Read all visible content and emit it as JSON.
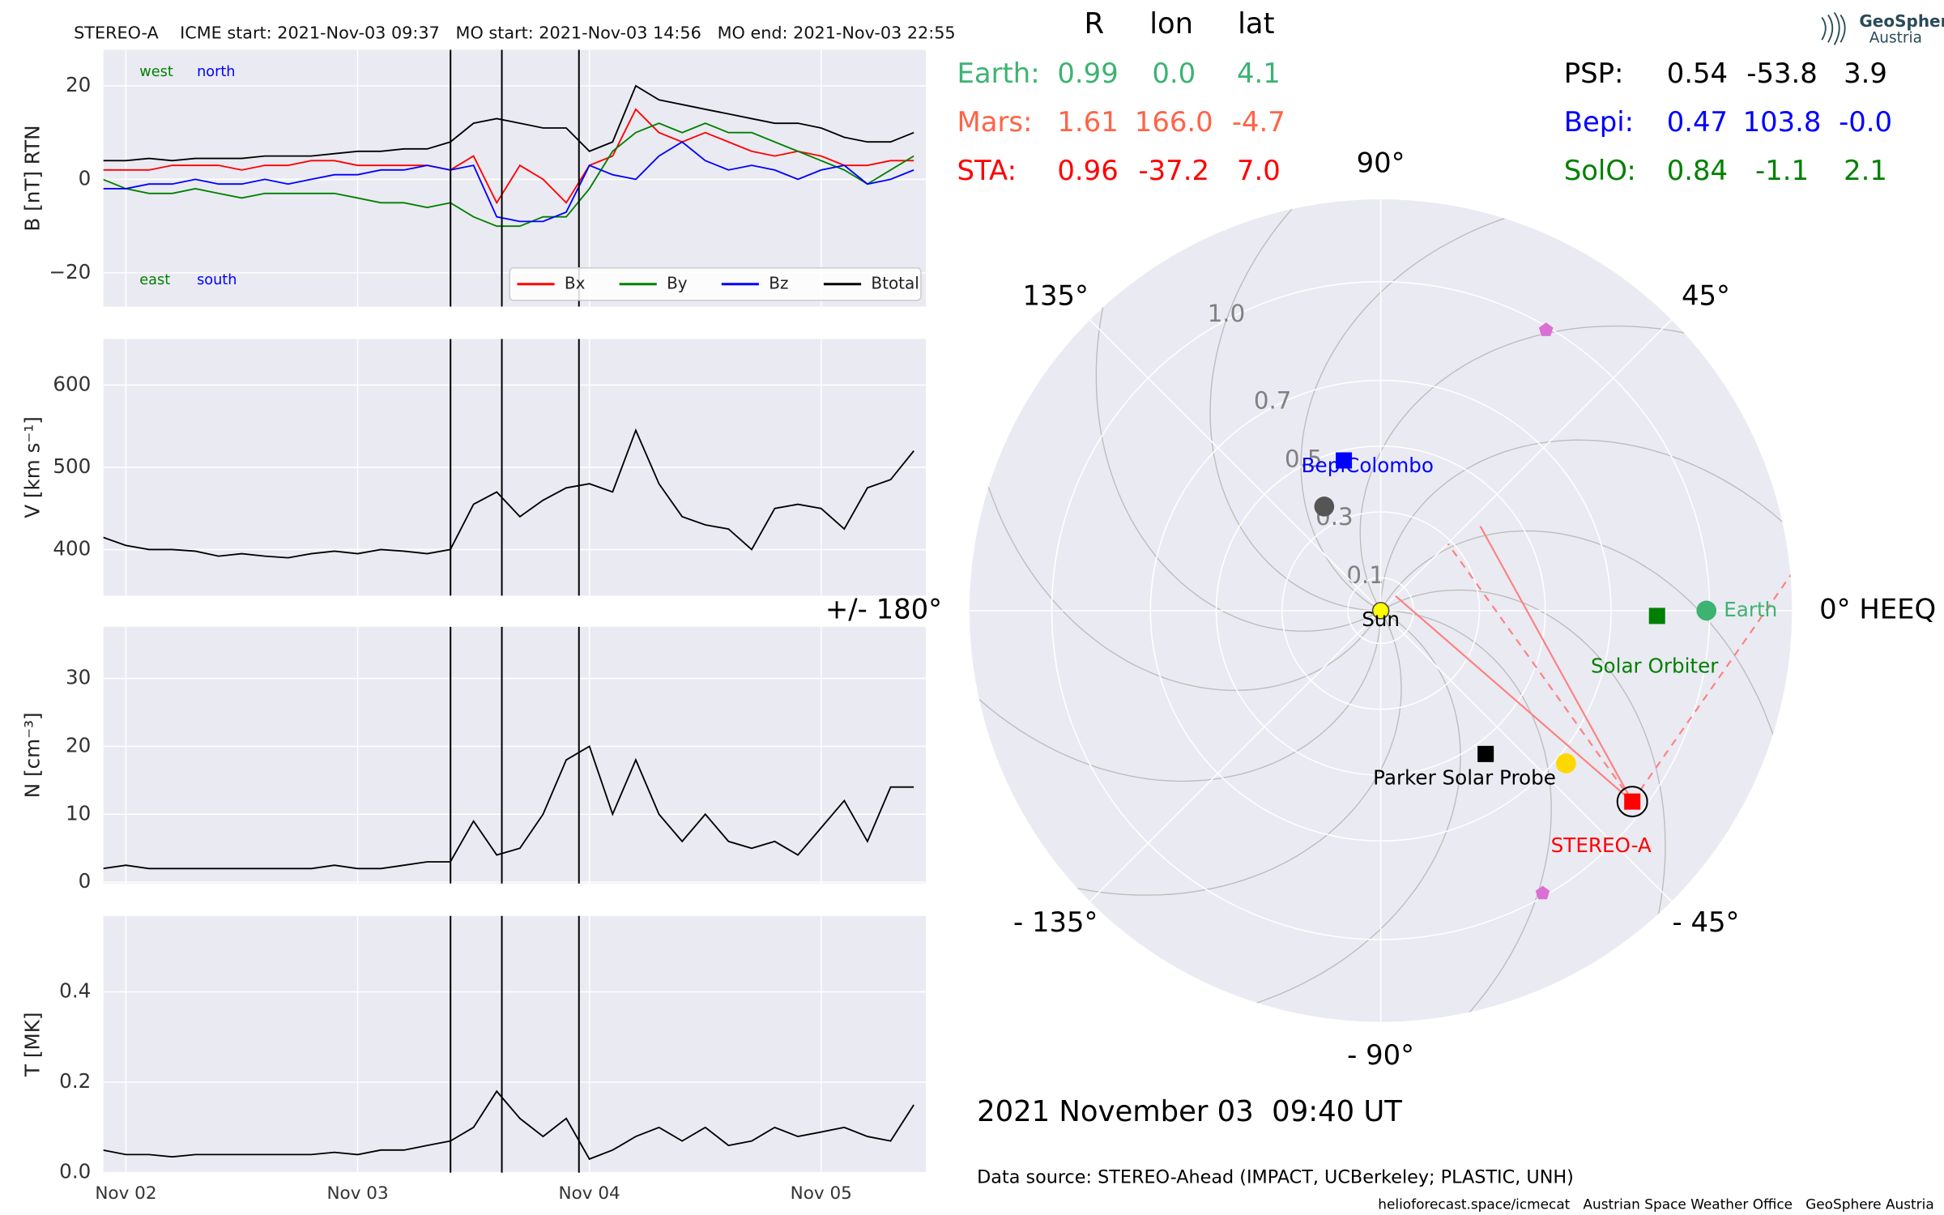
{
  "chart_data": [
    {
      "type": "line",
      "title": "STEREO-A    ICME start: 2021-Nov-03 09:37   MO start: 2021-Nov-03 14:56   MO end: 2021-Nov-03 22:55",
      "ylabel": "B [nT] RTN",
      "x": [
        1.9,
        2,
        2.1,
        2.2,
        2.3,
        2.4,
        2.5,
        2.6,
        2.7,
        2.8,
        2.9,
        3,
        3.1,
        3.2,
        3.3,
        3.4,
        3.5,
        3.6,
        3.7,
        3.8,
        3.9,
        4,
        4.1,
        4.2,
        4.3,
        4.4,
        4.5,
        4.6,
        4.7,
        4.8,
        4.9,
        5,
        5.1,
        5.2,
        5.3,
        5.4
      ],
      "series": [
        {
          "name": "Bx",
          "color": "#ff0000",
          "values": [
            2,
            2,
            2,
            3,
            3,
            3,
            2,
            3,
            3,
            4,
            4,
            3,
            3,
            3,
            3,
            2,
            5,
            -5,
            3,
            0,
            -5,
            3,
            5,
            15,
            10,
            8,
            10,
            8,
            6,
            5,
            6,
            5,
            3,
            3,
            4,
            4
          ]
        },
        {
          "name": "By",
          "color": "#008000",
          "values": [
            0,
            -2,
            -3,
            -3,
            -2,
            -3,
            -4,
            -3,
            -3,
            -3,
            -3,
            -4,
            -5,
            -5,
            -6,
            -5,
            -8,
            -10,
            -10,
            -8,
            -8,
            -2,
            6,
            10,
            12,
            10,
            12,
            10,
            10,
            8,
            6,
            4,
            2,
            -1,
            2,
            5
          ]
        },
        {
          "name": "Bz",
          "color": "#0000ff",
          "values": [
            -2,
            -2,
            -1,
            -1,
            0,
            -1,
            -1,
            0,
            -1,
            0,
            1,
            1,
            2,
            2,
            3,
            2,
            3,
            -8,
            -9,
            -9,
            -7,
            3,
            1,
            0,
            5,
            8,
            4,
            2,
            3,
            2,
            0,
            2,
            3,
            -1,
            0,
            2
          ]
        },
        {
          "name": "Btotal",
          "color": "#000000",
          "values": [
            4,
            4,
            4.5,
            4,
            4.5,
            4.5,
            4.5,
            5,
            5,
            5,
            5.5,
            6,
            6,
            6.5,
            6.5,
            8,
            12,
            13,
            12,
            11,
            11,
            6,
            8,
            20,
            17,
            16,
            15,
            14,
            13,
            12,
            12,
            11,
            9,
            8,
            8,
            10
          ]
        }
      ],
      "xlim": [
        1.903,
        5.452
      ],
      "xticks": [
        {
          "value": 2,
          "label": "Nov 02"
        },
        {
          "value": 3,
          "label": "Nov 03"
        },
        {
          "value": 4,
          "label": "Nov 04"
        },
        {
          "value": 5,
          "label": "Nov 05"
        }
      ],
      "ylim": [
        -27.2,
        27.7
      ],
      "yticks": [
        {
          "value": -20,
          "label": "−20"
        },
        0,
        20
      ],
      "vlines": [
        3.4007,
        3.6222,
        3.9549
      ],
      "annotations": [
        "west",
        "north",
        "east",
        "south"
      ],
      "legend": "lower right",
      "grid": true
    },
    {
      "type": "line",
      "ylabel": "V [km s⁻¹]",
      "x": [
        1.9,
        2,
        2.1,
        2.2,
        2.3,
        2.4,
        2.5,
        2.6,
        2.7,
        2.8,
        2.9,
        3,
        3.1,
        3.2,
        3.3,
        3.4,
        3.5,
        3.6,
        3.7,
        3.8,
        3.9,
        4,
        4.1,
        4.2,
        4.3,
        4.4,
        4.5,
        4.6,
        4.7,
        4.8,
        4.9,
        5,
        5.1,
        5.2,
        5.3,
        5.4
      ],
      "values": [
        415,
        405,
        400,
        400,
        398,
        392,
        395,
        392,
        390,
        395,
        398,
        395,
        400,
        398,
        395,
        400,
        455,
        470,
        440,
        460,
        475,
        480,
        470,
        545,
        480,
        440,
        430,
        425,
        400,
        450,
        455,
        450,
        425,
        475,
        485,
        520
      ],
      "color": "#000000",
      "xlim": [
        1.903,
        5.452
      ],
      "xticks": [
        {
          "value": 2,
          "label": "Nov 02"
        },
        {
          "value": 3,
          "label": "Nov 03"
        },
        {
          "value": 4,
          "label": "Nov 04"
        },
        {
          "value": 5,
          "label": "Nov 05"
        }
      ],
      "ylim": [
        344,
        656
      ],
      "yticks": [
        400,
        500,
        600
      ],
      "vlines": [
        3.4007,
        3.6222,
        3.9549
      ],
      "grid": true
    },
    {
      "type": "line",
      "ylabel": "N [cm⁻³]",
      "x": [
        1.9,
        2,
        2.1,
        2.2,
        2.3,
        2.4,
        2.5,
        2.6,
        2.7,
        2.8,
        2.9,
        3,
        3.1,
        3.2,
        3.3,
        3.4,
        3.5,
        3.6,
        3.7,
        3.8,
        3.9,
        4,
        4.1,
        4.2,
        4.3,
        4.4,
        4.5,
        4.6,
        4.7,
        4.8,
        4.9,
        5,
        5.1,
        5.2,
        5.3,
        5.4
      ],
      "values": [
        2,
        2.5,
        2,
        2,
        2,
        2,
        2,
        2,
        2,
        2,
        2.5,
        2,
        2,
        2.5,
        3,
        3,
        9,
        4,
        5,
        10,
        18,
        20,
        10,
        18,
        10,
        6,
        10,
        6,
        5,
        6,
        4,
        8,
        12,
        6,
        14,
        14
      ],
      "color": "#000000",
      "xlim": [
        1.903,
        5.452
      ],
      "xticks": [
        {
          "value": 2,
          "label": "Nov 02"
        },
        {
          "value": 3,
          "label": "Nov 03"
        },
        {
          "value": 4,
          "label": "Nov 04"
        },
        {
          "value": 5,
          "label": "Nov 05"
        }
      ],
      "ylim": [
        -0.2,
        37.6
      ],
      "yticks": [
        0,
        10,
        20,
        30
      ],
      "vlines": [
        3.4007,
        3.6222,
        3.9549
      ],
      "grid": true
    },
    {
      "type": "line",
      "ylabel": "T [MK]",
      "x": [
        1.9,
        2,
        2.1,
        2.2,
        2.3,
        2.4,
        2.5,
        2.6,
        2.7,
        2.8,
        2.9,
        3,
        3.1,
        3.2,
        3.3,
        3.4,
        3.5,
        3.6,
        3.7,
        3.8,
        3.9,
        4,
        4.1,
        4.2,
        4.3,
        4.4,
        4.5,
        4.6,
        4.7,
        4.8,
        4.9,
        5,
        5.1,
        5.2,
        5.3,
        5.4
      ],
      "values": [
        0.05,
        0.04,
        0.04,
        0.035,
        0.04,
        0.04,
        0.04,
        0.04,
        0.04,
        0.04,
        0.045,
        0.04,
        0.05,
        0.05,
        0.06,
        0.07,
        0.1,
        0.18,
        0.12,
        0.08,
        0.12,
        0.03,
        0.05,
        0.08,
        0.1,
        0.07,
        0.1,
        0.06,
        0.07,
        0.1,
        0.08,
        0.09,
        0.1,
        0.08,
        0.07,
        0.15
      ],
      "color": "#000000",
      "xlim": [
        1.903,
        5.452
      ],
      "xticks": [
        {
          "value": 2,
          "label": "Nov 02"
        },
        {
          "value": 3,
          "label": "Nov 03"
        },
        {
          "value": 4,
          "label": "Nov 04"
        },
        {
          "value": 5,
          "label": "Nov 05"
        }
      ],
      "ylim": [
        0,
        0.568
      ],
      "yticks": [
        {
          "value": 0,
          "label": "0.0"
        },
        0.2,
        0.4
      ],
      "vlines": [
        3.4007,
        3.6222,
        3.9549
      ],
      "grid": true
    },
    {
      "type": "polar",
      "rlim": [
        0,
        1.25
      ],
      "rticks": [
        0.1,
        0.3,
        0.5,
        0.7,
        {
          "value": 1,
          "label": "1.0"
        }
      ],
      "thetaticks": [
        {
          "value": 0,
          "label": "0° HEEQ"
        },
        {
          "value": 45,
          "label": "45°"
        },
        {
          "value": 90,
          "label": "90°"
        },
        {
          "value": 135,
          "label": "135°"
        },
        {
          "value": 180,
          "label": "+/- 180°"
        },
        {
          "value": -135,
          "label": "- 135°"
        },
        {
          "value": -90,
          "label": "- 90°"
        },
        {
          "value": -45,
          "label": "- 45°"
        }
      ],
      "points": [
        {
          "name": "Sun",
          "r": 0,
          "lon": 0,
          "color": "#ffff00",
          "marker": "circle"
        },
        {
          "name": "Earth",
          "r": 0.99,
          "lon": 0,
          "color": "#3cb371",
          "marker": "circle"
        },
        {
          "name": "Solar Orbiter",
          "r": 0.84,
          "lon": -1.1,
          "color": "#008000",
          "marker": "square"
        },
        {
          "name": "Parker Solar Probe",
          "r": 0.54,
          "lon": -53.8,
          "color": "#000000",
          "marker": "square"
        },
        {
          "name": "STEREO-A",
          "r": 0.96,
          "lon": -37.2,
          "color": "#ff0000",
          "marker": "square"
        },
        {
          "name": "BepiColombo",
          "r": 0.47,
          "lon": 103.8,
          "color": "#0000ff",
          "marker": "square"
        },
        {
          "r": 0.36,
          "lon": 118.5,
          "color": "#555555",
          "marker": "circle"
        },
        {
          "r": 0.73,
          "lon": -39.5,
          "color": "#ffd700",
          "marker": "circle"
        },
        {
          "r": 0.99,
          "lon": 59.5,
          "color": "#da70d6",
          "marker": "pentagon"
        },
        {
          "r": 0.99,
          "lon": -60.2,
          "color": "#da70d6",
          "marker": "pentagon"
        }
      ]
    }
  ],
  "table": {
    "columns": [
      "R",
      "lon",
      "lat"
    ],
    "rows": [
      [
        "Earth:",
        "0.99",
        "0.0",
        "4.1"
      ],
      [
        "Mars:",
        "1.61",
        "166.0",
        "-4.7"
      ],
      [
        "STA:",
        "0.96",
        "-37.2",
        "7.0"
      ],
      [
        "PSP:",
        "0.54",
        "-53.8",
        "3.9"
      ],
      [
        "Bepi:",
        "0.47",
        "103.8",
        "-0.0"
      ],
      [
        "SolO:",
        "0.84",
        "-1.1",
        "2.1"
      ]
    ],
    "colors": [
      "#3cb371",
      "#ff6347",
      "#ff0000",
      "#000000",
      "#0000ff",
      "#008000"
    ]
  },
  "date": "2021 November 03  09:40 UT",
  "source": "Data source: STEREO-Ahead (IMPACT, UCBerkeley; PLASTIC, UNH)",
  "footer": "helioforecast.space/icmecat   Austrian Space Weather Office   GeoSphere Austria",
  "logo": [
    "GeoSphere",
    "Austria"
  ]
}
